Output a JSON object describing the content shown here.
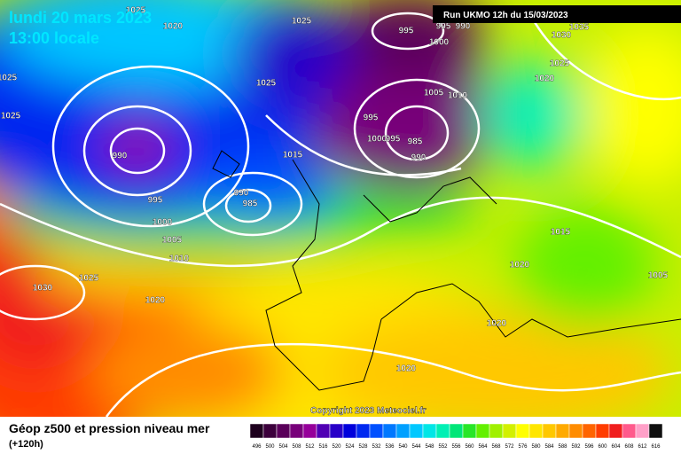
{
  "header": {
    "date": "lundi 20 mars 2023",
    "time": "13:00 locale",
    "run": "Run UKMO 12h du 15/03/2023"
  },
  "copyright": "Copyright 2023 Meteociel.fr",
  "footer": {
    "title": "Géop z500 et pression niveau mer",
    "lead": "(+120h)"
  },
  "isobar_labels": [
    1025,
    1020,
    1025,
    995,
    995,
    990,
    1000,
    1030,
    1035,
    1025,
    1025,
    1025,
    1005,
    1010,
    1025,
    1020,
    995,
    990,
    1000,
    995,
    985,
    990,
    1015,
    995,
    990,
    985,
    1000,
    1005,
    1010,
    1015,
    1020,
    1030,
    1025,
    1020,
    1005,
    1020,
    1020
  ],
  "scale": {
    "labels": [
      496,
      500,
      504,
      508,
      512,
      516,
      520,
      524,
      528,
      532,
      536,
      540,
      544,
      548,
      552,
      556,
      560,
      564,
      568,
      572,
      576,
      580,
      584,
      588,
      592,
      596,
      600,
      604,
      608,
      612,
      616
    ],
    "colors": [
      "#1e001e",
      "#3c003c",
      "#5a005a",
      "#78007a",
      "#96009a",
      "#5000b4",
      "#2800c8",
      "#0000dc",
      "#0028f0",
      "#0050ff",
      "#0078ff",
      "#00a0ff",
      "#00c8ff",
      "#00e6e6",
      "#00f0b4",
      "#00e678",
      "#28e628",
      "#64f000",
      "#a0f000",
      "#d2f000",
      "#ffff00",
      "#ffe600",
      "#ffc800",
      "#ffaa00",
      "#ff8c00",
      "#ff6400",
      "#ff3c00",
      "#f01e1e",
      "#ff5a8c",
      "#ffa0c8",
      "#101010"
    ]
  }
}
